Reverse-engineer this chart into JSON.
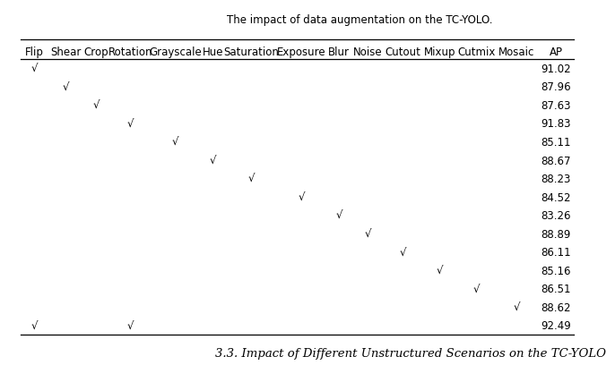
{
  "title_top": "The impact of data augmentation on the TC-YOLO.",
  "columns": [
    "Flip",
    "Shear",
    "Crop",
    "Rotation",
    "Grayscale",
    "Hue",
    "Saturation",
    "Exposure",
    "Blur",
    "Noise",
    "Cutout",
    "Mixup",
    "Cutmix",
    "Mosaic",
    "AP"
  ],
  "rows": [
    [
      1,
      0,
      0,
      0,
      0,
      0,
      0,
      0,
      0,
      0,
      0,
      0,
      0,
      0,
      "91.02"
    ],
    [
      0,
      1,
      0,
      0,
      0,
      0,
      0,
      0,
      0,
      0,
      0,
      0,
      0,
      0,
      "87.96"
    ],
    [
      0,
      0,
      1,
      0,
      0,
      0,
      0,
      0,
      0,
      0,
      0,
      0,
      0,
      0,
      "87.63"
    ],
    [
      0,
      0,
      0,
      1,
      0,
      0,
      0,
      0,
      0,
      0,
      0,
      0,
      0,
      0,
      "91.83"
    ],
    [
      0,
      0,
      0,
      0,
      1,
      0,
      0,
      0,
      0,
      0,
      0,
      0,
      0,
      0,
      "85.11"
    ],
    [
      0,
      0,
      0,
      0,
      0,
      1,
      0,
      0,
      0,
      0,
      0,
      0,
      0,
      0,
      "88.67"
    ],
    [
      0,
      0,
      0,
      0,
      0,
      0,
      1,
      0,
      0,
      0,
      0,
      0,
      0,
      0,
      "88.23"
    ],
    [
      0,
      0,
      0,
      0,
      0,
      0,
      0,
      1,
      0,
      0,
      0,
      0,
      0,
      0,
      "84.52"
    ],
    [
      0,
      0,
      0,
      0,
      0,
      0,
      0,
      0,
      1,
      0,
      0,
      0,
      0,
      0,
      "83.26"
    ],
    [
      0,
      0,
      0,
      0,
      0,
      0,
      0,
      0,
      0,
      1,
      0,
      0,
      0,
      0,
      "88.89"
    ],
    [
      0,
      0,
      0,
      0,
      0,
      0,
      0,
      0,
      0,
      0,
      1,
      0,
      0,
      0,
      "86.11"
    ],
    [
      0,
      0,
      0,
      0,
      0,
      0,
      0,
      0,
      0,
      0,
      0,
      1,
      0,
      0,
      "85.16"
    ],
    [
      0,
      0,
      0,
      0,
      0,
      0,
      0,
      0,
      0,
      0,
      0,
      0,
      1,
      0,
      "86.51"
    ],
    [
      0,
      0,
      0,
      0,
      0,
      0,
      0,
      0,
      0,
      0,
      0,
      0,
      0,
      1,
      "88.62"
    ],
    [
      1,
      0,
      0,
      1,
      0,
      0,
      0,
      0,
      0,
      0,
      0,
      0,
      0,
      0,
      "92.49"
    ]
  ],
  "footer": "3.3. Impact of Different Unstructured Scenarios on the TC-YOLO",
  "check_symbol": "√",
  "bg_color": "#ffffff",
  "text_color": "#000000",
  "line_color": "#000000",
  "font_size": 8.5,
  "header_font_size": 8.5,
  "footer_font_size": 9.5,
  "col_widths_rel": [
    0.85,
    1.0,
    0.85,
    1.2,
    1.5,
    0.75,
    1.55,
    1.45,
    0.8,
    0.95,
    1.15,
    1.05,
    1.15,
    1.25,
    1.1
  ]
}
